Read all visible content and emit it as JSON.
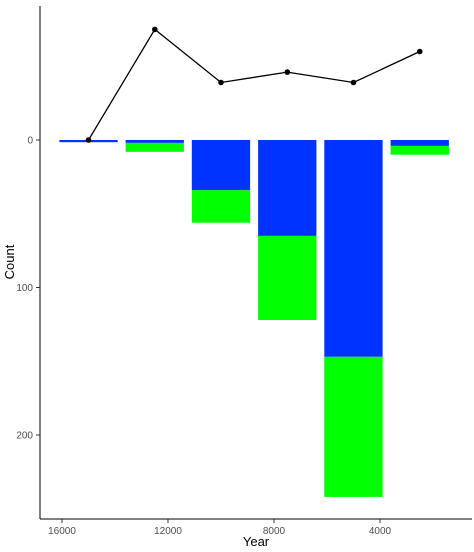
{
  "chart_data": {
    "type": "bar",
    "xlabel": "Year",
    "ylabel": "Count",
    "x_reversed": true,
    "xlim": [
      17000,
      1000
    ],
    "x_ticks": [
      16000,
      12000,
      8000,
      4000
    ],
    "y_reversed": true,
    "y_ticks": [
      0,
      100,
      200
    ],
    "bar_width": 2200,
    "stacked_bars": [
      {
        "x": 15000,
        "segments": [
          {
            "from": 0,
            "to": 1.5,
            "color": "#0033FF"
          }
        ]
      },
      {
        "x": 12500,
        "segments": [
          {
            "from": 0,
            "to": 2,
            "color": "#0033FF"
          },
          {
            "from": 2,
            "to": 8,
            "color": "#00FF00"
          }
        ]
      },
      {
        "x": 10000,
        "segments": [
          {
            "from": 0,
            "to": 34,
            "color": "#0033FF"
          },
          {
            "from": 34,
            "to": 56,
            "color": "#00FF00"
          }
        ]
      },
      {
        "x": 7500,
        "segments": [
          {
            "from": 0,
            "to": 65,
            "color": "#0033FF"
          },
          {
            "from": 65,
            "to": 122,
            "color": "#00FF00"
          }
        ]
      },
      {
        "x": 5000,
        "segments": [
          {
            "from": 0,
            "to": 147,
            "color": "#0033FF"
          },
          {
            "from": 147,
            "to": 242,
            "color": "#00FF00"
          }
        ]
      },
      {
        "x": 2500,
        "segments": [
          {
            "from": 0,
            "to": 4,
            "color": "#0033FF"
          },
          {
            "from": 4,
            "to": 10,
            "color": "#00FF00"
          }
        ]
      }
    ],
    "line": {
      "color": "#000000",
      "points": [
        {
          "x": 15000,
          "y": 0
        },
        {
          "x": 12500,
          "y": -75
        },
        {
          "x": 10000,
          "y": -39
        },
        {
          "x": 7500,
          "y": -46
        },
        {
          "x": 5000,
          "y": -39
        },
        {
          "x": 2500,
          "y": -60
        }
      ]
    }
  }
}
